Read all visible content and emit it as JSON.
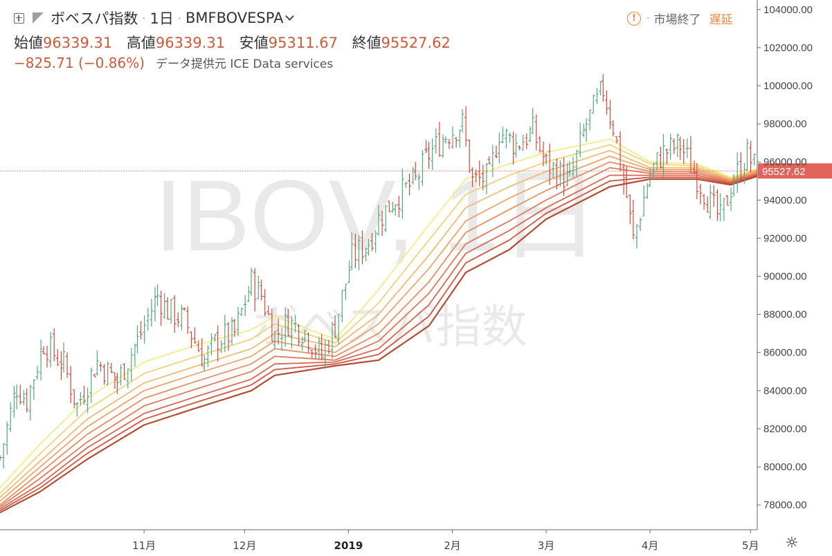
{
  "header": {
    "symbol_name": "ボベスパ指数",
    "interval": "1日",
    "exchange_symbol": "BMFBOVESPA",
    "open_label": "始値",
    "open_value": "96339.31",
    "high_label": "高値",
    "high_value": "96339.31",
    "low_label": "安値",
    "low_value": "95311.67",
    "close_label": "終値",
    "close_value": "95527.62",
    "change": "−825.71 (−0.86%)",
    "data_source": "データ提供元 ICE Data services"
  },
  "status": {
    "alert_glyph": "!",
    "market": "市場終了",
    "delay": "遅延"
  },
  "watermark": {
    "main": "IBOV, 1日",
    "sub": "ボベスパ指数"
  },
  "settings_glyph": "☼",
  "chart_data": {
    "type": "line",
    "grid": false,
    "ylim": [
      76700,
      104500
    ],
    "y_ticks": [
      78000,
      80000,
      82000,
      84000,
      86000,
      88000,
      90000,
      92000,
      94000,
      96000,
      98000,
      100000,
      102000,
      104000
    ],
    "y_tick_labels": [
      "78000.00",
      "80000.00",
      "82000.00",
      "84000.00",
      "86000.00",
      "88000.00",
      "90000.00",
      "92000.00",
      "94000.00",
      "96000.00",
      "98000.00",
      "100000.00",
      "102000.00",
      "104000.00"
    ],
    "x_range": [
      "2018-09-19",
      "2019-05-03"
    ],
    "x_ticks": [
      {
        "date": "2018-11-01",
        "label": "11月"
      },
      {
        "date": "2018-12-01",
        "label": "12月"
      },
      {
        "date": "2019-01-01",
        "label": "2019"
      },
      {
        "date": "2019-02-01",
        "label": "2月"
      },
      {
        "date": "2019-03-01",
        "label": "3月"
      },
      {
        "date": "2019-04-01",
        "label": "4月"
      },
      {
        "date": "2019-05-01",
        "label": "5月"
      }
    ],
    "last_price": 95527.62,
    "last_price_label": "95527.62",
    "up_color": "#53a67a",
    "down_color": "#d0483a",
    "close_path": [
      {
        "date": "2018-09-19",
        "close": 80500
      },
      {
        "date": "2018-09-24",
        "close": 84200
      },
      {
        "date": "2018-09-27",
        "close": 83500
      },
      {
        "date": "2018-10-02",
        "close": 86500
      },
      {
        "date": "2018-10-08",
        "close": 85400
      },
      {
        "date": "2018-10-12",
        "close": 83200
      },
      {
        "date": "2018-10-18",
        "close": 85500
      },
      {
        "date": "2018-10-24",
        "close": 84500
      },
      {
        "date": "2018-10-30",
        "close": 86600
      },
      {
        "date": "2018-11-05",
        "close": 89000
      },
      {
        "date": "2018-11-08",
        "close": 88200
      },
      {
        "date": "2018-11-13",
        "close": 87700
      },
      {
        "date": "2018-11-19",
        "close": 85600
      },
      {
        "date": "2018-11-23",
        "close": 86700
      },
      {
        "date": "2018-11-28",
        "close": 87000
      },
      {
        "date": "2018-12-03",
        "close": 89700
      },
      {
        "date": "2018-12-06",
        "close": 89000
      },
      {
        "date": "2018-12-10",
        "close": 86900
      },
      {
        "date": "2018-12-14",
        "close": 87600
      },
      {
        "date": "2018-12-19",
        "close": 87100
      },
      {
        "date": "2018-12-24",
        "close": 85800
      },
      {
        "date": "2018-12-28",
        "close": 87400
      },
      {
        "date": "2019-01-02",
        "close": 91000
      },
      {
        "date": "2019-01-07",
        "close": 91800
      },
      {
        "date": "2019-01-10",
        "close": 93000
      },
      {
        "date": "2019-01-15",
        "close": 94100
      },
      {
        "date": "2019-01-21",
        "close": 95000
      },
      {
        "date": "2019-01-25",
        "close": 96400
      },
      {
        "date": "2019-01-30",
        "close": 97400
      },
      {
        "date": "2019-02-04",
        "close": 98000
      },
      {
        "date": "2019-02-07",
        "close": 95000
      },
      {
        "date": "2019-02-12",
        "close": 95200
      },
      {
        "date": "2019-02-15",
        "close": 97600
      },
      {
        "date": "2019-02-20",
        "close": 96900
      },
      {
        "date": "2019-02-25",
        "close": 97600
      },
      {
        "date": "2019-03-01",
        "close": 95900
      },
      {
        "date": "2019-03-08",
        "close": 95000
      },
      {
        "date": "2019-03-13",
        "close": 98000
      },
      {
        "date": "2019-03-18",
        "close": 99800
      },
      {
        "date": "2019-03-21",
        "close": 97900
      },
      {
        "date": "2019-03-25",
        "close": 94200
      },
      {
        "date": "2019-03-27",
        "close": 91900
      },
      {
        "date": "2019-04-01",
        "close": 95400
      },
      {
        "date": "2019-04-05",
        "close": 96500
      },
      {
        "date": "2019-04-10",
        "close": 96900
      },
      {
        "date": "2019-04-15",
        "close": 95200
      },
      {
        "date": "2019-04-19",
        "close": 93800
      },
      {
        "date": "2019-04-22",
        "close": 93000
      },
      {
        "date": "2019-04-26",
        "close": 95100
      },
      {
        "date": "2019-04-30",
        "close": 96400
      },
      {
        "date": "2019-05-03",
        "close": 95527.62
      }
    ],
    "ribbon": {
      "colors": [
        "#f6ea8a",
        "#f3d27e",
        "#efbb74",
        "#eca56b",
        "#e88e62",
        "#e37a5a",
        "#da6651",
        "#cc5642",
        "#b84a31"
      ],
      "lines": [
        [
          {
            "date": "2018-09-19",
            "v": 78900
          },
          {
            "date": "2018-10-01",
            "v": 81200
          },
          {
            "date": "2018-10-15",
            "v": 83600
          },
          {
            "date": "2018-11-01",
            "v": 85500
          },
          {
            "date": "2018-11-15",
            "v": 86300
          },
          {
            "date": "2018-12-03",
            "v": 87200
          },
          {
            "date": "2018-12-10",
            "v": 87900
          },
          {
            "date": "2018-12-28",
            "v": 86700
          },
          {
            "date": "2019-01-10",
            "v": 89300
          },
          {
            "date": "2019-01-25",
            "v": 92700
          },
          {
            "date": "2019-02-05",
            "v": 95100
          },
          {
            "date": "2019-02-18",
            "v": 95900
          },
          {
            "date": "2019-03-01",
            "v": 96500
          },
          {
            "date": "2019-03-20",
            "v": 97200
          },
          {
            "date": "2019-04-01",
            "v": 96000
          },
          {
            "date": "2019-04-15",
            "v": 95900
          },
          {
            "date": "2019-04-25",
            "v": 95200
          },
          {
            "date": "2019-05-03",
            "v": 95650
          }
        ],
        [
          {
            "date": "2018-09-19",
            "v": 78600
          },
          {
            "date": "2018-10-01",
            "v": 80700
          },
          {
            "date": "2018-10-15",
            "v": 83000
          },
          {
            "date": "2018-11-01",
            "v": 84900
          },
          {
            "date": "2018-11-15",
            "v": 85700
          },
          {
            "date": "2018-12-03",
            "v": 86700
          },
          {
            "date": "2018-12-10",
            "v": 87500
          },
          {
            "date": "2018-12-28",
            "v": 86500
          },
          {
            "date": "2019-01-10",
            "v": 88600
          },
          {
            "date": "2019-01-25",
            "v": 91900
          },
          {
            "date": "2019-02-05",
            "v": 94300
          },
          {
            "date": "2019-02-18",
            "v": 95300
          },
          {
            "date": "2019-03-01",
            "v": 96000
          },
          {
            "date": "2019-03-20",
            "v": 96900
          },
          {
            "date": "2019-04-01",
            "v": 95900
          },
          {
            "date": "2019-04-15",
            "v": 95800
          },
          {
            "date": "2019-04-25",
            "v": 95150
          },
          {
            "date": "2019-05-03",
            "v": 95600
          }
        ],
        [
          {
            "date": "2018-09-19",
            "v": 78400
          },
          {
            "date": "2018-10-01",
            "v": 80300
          },
          {
            "date": "2018-10-15",
            "v": 82500
          },
          {
            "date": "2018-11-01",
            "v": 84400
          },
          {
            "date": "2018-11-15",
            "v": 85200
          },
          {
            "date": "2018-12-03",
            "v": 86200
          },
          {
            "date": "2018-12-10",
            "v": 87000
          },
          {
            "date": "2018-12-28",
            "v": 86300
          },
          {
            "date": "2019-01-10",
            "v": 88000
          },
          {
            "date": "2019-01-25",
            "v": 91100
          },
          {
            "date": "2019-02-05",
            "v": 93600
          },
          {
            "date": "2019-02-18",
            "v": 94700
          },
          {
            "date": "2019-03-01",
            "v": 95500
          },
          {
            "date": "2019-03-20",
            "v": 96600
          },
          {
            "date": "2019-04-01",
            "v": 95700
          },
          {
            "date": "2019-04-15",
            "v": 95700
          },
          {
            "date": "2019-04-25",
            "v": 95100
          },
          {
            "date": "2019-05-03",
            "v": 95550
          }
        ],
        [
          {
            "date": "2018-09-19",
            "v": 78200
          },
          {
            "date": "2018-10-01",
            "v": 80000
          },
          {
            "date": "2018-10-15",
            "v": 82100
          },
          {
            "date": "2018-11-01",
            "v": 84000
          },
          {
            "date": "2018-11-15",
            "v": 84800
          },
          {
            "date": "2018-12-03",
            "v": 85800
          },
          {
            "date": "2018-12-10",
            "v": 86600
          },
          {
            "date": "2018-12-28",
            "v": 86000
          },
          {
            "date": "2019-01-10",
            "v": 87500
          },
          {
            "date": "2019-01-25",
            "v": 90400
          },
          {
            "date": "2019-02-05",
            "v": 92900
          },
          {
            "date": "2019-02-18",
            "v": 94100
          },
          {
            "date": "2019-03-01",
            "v": 95000
          },
          {
            "date": "2019-03-20",
            "v": 96300
          },
          {
            "date": "2019-04-01",
            "v": 95600
          },
          {
            "date": "2019-04-15",
            "v": 95600
          },
          {
            "date": "2019-04-25",
            "v": 95050
          },
          {
            "date": "2019-05-03",
            "v": 95500
          }
        ],
        [
          {
            "date": "2018-09-19",
            "v": 78000
          },
          {
            "date": "2018-10-01",
            "v": 79700
          },
          {
            "date": "2018-10-15",
            "v": 81700
          },
          {
            "date": "2018-11-01",
            "v": 83600
          },
          {
            "date": "2018-11-15",
            "v": 84400
          },
          {
            "date": "2018-12-03",
            "v": 85400
          },
          {
            "date": "2018-12-10",
            "v": 86200
          },
          {
            "date": "2018-12-28",
            "v": 85800
          },
          {
            "date": "2019-01-10",
            "v": 87000
          },
          {
            "date": "2019-01-25",
            "v": 89700
          },
          {
            "date": "2019-02-05",
            "v": 92300
          },
          {
            "date": "2019-02-18",
            "v": 93500
          },
          {
            "date": "2019-03-01",
            "v": 94500
          },
          {
            "date": "2019-03-20",
            "v": 96000
          },
          {
            "date": "2019-04-01",
            "v": 95500
          },
          {
            "date": "2019-04-15",
            "v": 95500
          },
          {
            "date": "2019-04-25",
            "v": 95000
          },
          {
            "date": "2019-05-03",
            "v": 95450
          }
        ],
        [
          {
            "date": "2018-09-19",
            "v": 77900
          },
          {
            "date": "2018-10-01",
            "v": 79400
          },
          {
            "date": "2018-10-15",
            "v": 81300
          },
          {
            "date": "2018-11-01",
            "v": 83200
          },
          {
            "date": "2018-11-15",
            "v": 84000
          },
          {
            "date": "2018-12-03",
            "v": 85000
          },
          {
            "date": "2018-12-10",
            "v": 85800
          },
          {
            "date": "2018-12-28",
            "v": 85600
          },
          {
            "date": "2019-01-10",
            "v": 86600
          },
          {
            "date": "2019-01-25",
            "v": 89100
          },
          {
            "date": "2019-02-05",
            "v": 91700
          },
          {
            "date": "2019-02-18",
            "v": 92900
          },
          {
            "date": "2019-03-01",
            "v": 94000
          },
          {
            "date": "2019-03-20",
            "v": 95700
          },
          {
            "date": "2019-04-01",
            "v": 95400
          },
          {
            "date": "2019-04-15",
            "v": 95400
          },
          {
            "date": "2019-04-25",
            "v": 94950
          },
          {
            "date": "2019-05-03",
            "v": 95400
          }
        ],
        [
          {
            "date": "2018-09-19",
            "v": 77800
          },
          {
            "date": "2018-10-01",
            "v": 79100
          },
          {
            "date": "2018-10-15",
            "v": 81000
          },
          {
            "date": "2018-11-01",
            "v": 82800
          },
          {
            "date": "2018-11-15",
            "v": 83600
          },
          {
            "date": "2018-12-03",
            "v": 84600
          },
          {
            "date": "2018-12-10",
            "v": 85400
          },
          {
            "date": "2018-12-28",
            "v": 85500
          },
          {
            "date": "2019-01-10",
            "v": 86200
          },
          {
            "date": "2019-01-25",
            "v": 88500
          },
          {
            "date": "2019-02-05",
            "v": 91200
          },
          {
            "date": "2019-02-18",
            "v": 92400
          },
          {
            "date": "2019-03-01",
            "v": 93600
          },
          {
            "date": "2019-03-20",
            "v": 95300
          },
          {
            "date": "2019-04-01",
            "v": 95300
          },
          {
            "date": "2019-04-15",
            "v": 95300
          },
          {
            "date": "2019-04-25",
            "v": 94900
          },
          {
            "date": "2019-05-03",
            "v": 95350
          }
        ],
        [
          {
            "date": "2018-09-19",
            "v": 77700
          },
          {
            "date": "2018-10-01",
            "v": 78900
          },
          {
            "date": "2018-10-15",
            "v": 80700
          },
          {
            "date": "2018-11-01",
            "v": 82500
          },
          {
            "date": "2018-11-15",
            "v": 83300
          },
          {
            "date": "2018-12-03",
            "v": 84300
          },
          {
            "date": "2018-12-10",
            "v": 85100
          },
          {
            "date": "2018-12-28",
            "v": 85400
          },
          {
            "date": "2019-01-10",
            "v": 85900
          },
          {
            "date": "2019-01-25",
            "v": 87900
          },
          {
            "date": "2019-02-05",
            "v": 90700
          },
          {
            "date": "2019-02-18",
            "v": 91900
          },
          {
            "date": "2019-03-01",
            "v": 93300
          },
          {
            "date": "2019-03-20",
            "v": 95000
          },
          {
            "date": "2019-04-01",
            "v": 95200
          },
          {
            "date": "2019-04-15",
            "v": 95200
          },
          {
            "date": "2019-04-25",
            "v": 94850
          },
          {
            "date": "2019-05-03",
            "v": 95300
          }
        ],
        [
          {
            "date": "2018-09-19",
            "v": 77600
          },
          {
            "date": "2018-10-01",
            "v": 78700
          },
          {
            "date": "2018-10-15",
            "v": 80400
          },
          {
            "date": "2018-11-01",
            "v": 82200
          },
          {
            "date": "2018-11-15",
            "v": 83000
          },
          {
            "date": "2018-12-03",
            "v": 84000
          },
          {
            "date": "2018-12-10",
            "v": 84800
          },
          {
            "date": "2018-12-28",
            "v": 85300
          },
          {
            "date": "2019-01-10",
            "v": 85600
          },
          {
            "date": "2019-01-25",
            "v": 87400
          },
          {
            "date": "2019-02-05",
            "v": 90200
          },
          {
            "date": "2019-02-18",
            "v": 91400
          },
          {
            "date": "2019-03-01",
            "v": 93000
          },
          {
            "date": "2019-03-20",
            "v": 94700
          },
          {
            "date": "2019-04-01",
            "v": 95100
          },
          {
            "date": "2019-04-15",
            "v": 95100
          },
          {
            "date": "2019-04-25",
            "v": 94800
          },
          {
            "date": "2019-05-03",
            "v": 95250
          }
        ]
      ]
    }
  }
}
